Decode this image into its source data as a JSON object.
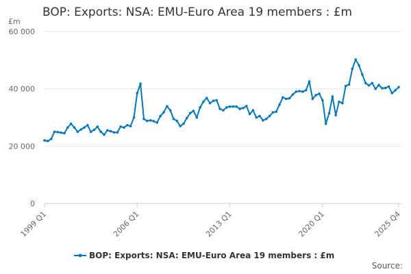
{
  "chart_data": {
    "type": "line",
    "title": "BOP: Exports: NSA: EMU-Euro Area 19 members : £m",
    "ylabel": "£m",
    "xlabel": "",
    "ylim": [
      0,
      60000
    ],
    "yticks": [
      0,
      20000,
      40000,
      60000
    ],
    "ytick_labels": [
      "0",
      "20 000",
      "40 000",
      "60 000"
    ],
    "x_first": "1999 Q1",
    "x_last": "2025 Q4",
    "xtick_labels": [
      "1999 Q1",
      "2006 Q1",
      "2013 Q1",
      "2020 Q1",
      "2025 Q4"
    ],
    "grid": "horizontal",
    "legend_position": "bottom",
    "color": "#0077bb",
    "series": [
      {
        "name": "BOP: Exports: NSA: EMU-Euro Area 19 members : £m",
        "values": [
          22000,
          21800,
          22500,
          25000,
          24900,
          24700,
          24500,
          26500,
          27800,
          26500,
          25000,
          25800,
          26500,
          27300,
          25000,
          25700,
          26800,
          25000,
          24000,
          25500,
          25200,
          24800,
          24800,
          26800,
          26500,
          27300,
          27000,
          30000,
          38500,
          41800,
          29500,
          28800,
          29000,
          28700,
          28200,
          30500,
          31800,
          33900,
          32500,
          29500,
          28800,
          27000,
          27800,
          29800,
          31500,
          32300,
          30000,
          33500,
          35500,
          36800,
          35000,
          35800,
          36000,
          33000,
          32500,
          33500,
          33800,
          33800,
          33800,
          33000,
          33300,
          34000,
          31200,
          32500,
          30000,
          30500,
          29000,
          29500,
          30500,
          31800,
          32000,
          34500,
          37000,
          36500,
          36700,
          38000,
          39000,
          39200,
          39000,
          39500,
          42500,
          36500,
          37800,
          38300,
          36000,
          27800,
          31500,
          37300,
          30800,
          35500,
          35000,
          41000,
          41500,
          47000,
          50200,
          48200,
          45000,
          42000,
          41200,
          42000,
          40000,
          41300,
          40200,
          40300,
          40800,
          38500,
          39500,
          40600
        ]
      }
    ]
  },
  "source_label": "Source:"
}
